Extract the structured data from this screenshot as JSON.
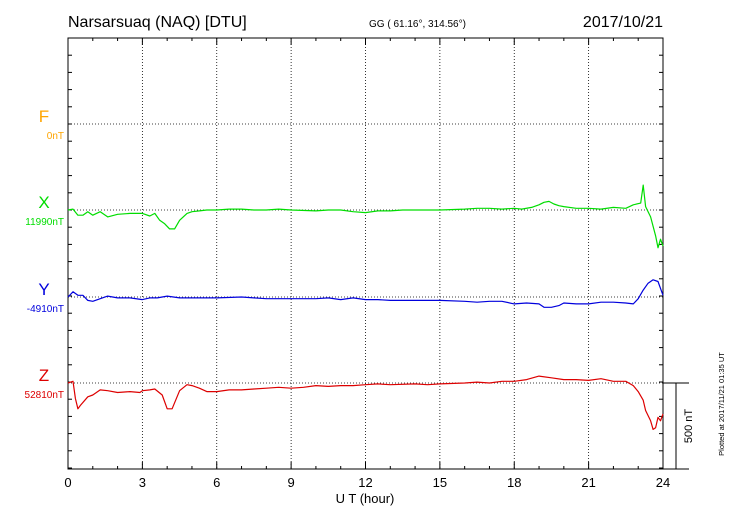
{
  "header": {
    "station": "Narsarsuaq (NAQ)  [DTU]",
    "coords": "GG ( 61.16°, 314.56°)",
    "date": "2017/10/21"
  },
  "scale_bar": {
    "label": "500 nT"
  },
  "plotted_note": "Plotted at 2017/11/21 01:35 UT",
  "chart_data": {
    "type": "line",
    "title": "Narsarsuaq (NAQ)  [DTU]",
    "xlabel": "U T (hour)",
    "xlim": [
      0,
      24
    ],
    "x_ticks": [
      "0",
      "3",
      "6",
      "9",
      "12",
      "15",
      "18",
      "21",
      "24"
    ],
    "grid": true,
    "scale_nT": 500,
    "series": [
      {
        "name": "F",
        "baseline_label": "0nT",
        "baseline_nT": 0,
        "color": "#FFA500",
        "points": []
      },
      {
        "name": "X",
        "baseline_label": "11990nT",
        "baseline_nT": 11990,
        "color": "#00DD00",
        "points": [
          [
            0,
            0
          ],
          [
            0.2,
            5
          ],
          [
            0.4,
            -30
          ],
          [
            0.6,
            -30
          ],
          [
            0.8,
            -10
          ],
          [
            1,
            -30
          ],
          [
            1.3,
            -10
          ],
          [
            1.6,
            -40
          ],
          [
            2,
            -25
          ],
          [
            2.5,
            -20
          ],
          [
            3,
            -20
          ],
          [
            3.3,
            -35
          ],
          [
            3.5,
            -20
          ],
          [
            3.7,
            -60
          ],
          [
            3.9,
            -80
          ],
          [
            4.1,
            -110
          ],
          [
            4.3,
            -110
          ],
          [
            4.5,
            -60
          ],
          [
            4.8,
            -20
          ],
          [
            5,
            -10
          ],
          [
            5.3,
            -5
          ],
          [
            5.6,
            0
          ],
          [
            6,
            0
          ],
          [
            6.5,
            5
          ],
          [
            7,
            5
          ],
          [
            7.5,
            0
          ],
          [
            8,
            0
          ],
          [
            8.5,
            5
          ],
          [
            9,
            0
          ],
          [
            10,
            -5
          ],
          [
            10.5,
            0
          ],
          [
            11,
            0
          ],
          [
            11.5,
            -10
          ],
          [
            12,
            -15
          ],
          [
            12.5,
            -5
          ],
          [
            13,
            -5
          ],
          [
            13.5,
            0
          ],
          [
            14,
            0
          ],
          [
            15,
            0
          ],
          [
            16,
            5
          ],
          [
            16.5,
            10
          ],
          [
            17,
            10
          ],
          [
            17.5,
            5
          ],
          [
            18,
            10
          ],
          [
            18.3,
            5
          ],
          [
            18.7,
            15
          ],
          [
            19,
            30
          ],
          [
            19.2,
            45
          ],
          [
            19.4,
            50
          ],
          [
            19.6,
            35
          ],
          [
            19.8,
            25
          ],
          [
            20,
            20
          ],
          [
            20.5,
            10
          ],
          [
            21,
            10
          ],
          [
            21.5,
            5
          ],
          [
            22,
            15
          ],
          [
            22.5,
            10
          ],
          [
            22.8,
            30
          ],
          [
            23.1,
            40
          ],
          [
            23.2,
            145
          ],
          [
            23.3,
            20
          ],
          [
            23.5,
            -40
          ],
          [
            23.7,
            -150
          ],
          [
            23.8,
            -220
          ],
          [
            23.9,
            -170
          ],
          [
            24,
            -210
          ]
        ]
      },
      {
        "name": "Y",
        "baseline_label": "-4910nT",
        "baseline_nT": -4910,
        "color": "#0000DD",
        "points": [
          [
            0,
            0
          ],
          [
            0.2,
            30
          ],
          [
            0.4,
            10
          ],
          [
            0.6,
            10
          ],
          [
            0.8,
            -20
          ],
          [
            1,
            -25
          ],
          [
            1.3,
            -10
          ],
          [
            1.6,
            5
          ],
          [
            2,
            -5
          ],
          [
            2.5,
            -5
          ],
          [
            3,
            -15
          ],
          [
            3.3,
            -5
          ],
          [
            3.6,
            -5
          ],
          [
            4,
            5
          ],
          [
            4.5,
            -5
          ],
          [
            5,
            -5
          ],
          [
            5.5,
            -5
          ],
          [
            6,
            -5
          ],
          [
            7,
            0
          ],
          [
            7.5,
            -5
          ],
          [
            8,
            -10
          ],
          [
            8.5,
            -10
          ],
          [
            9,
            -10
          ],
          [
            10,
            -10
          ],
          [
            10.5,
            -5
          ],
          [
            11,
            -15
          ],
          [
            11.5,
            -5
          ],
          [
            12,
            -15
          ],
          [
            12.5,
            -15
          ],
          [
            13,
            -20
          ],
          [
            14,
            -20
          ],
          [
            15,
            -20
          ],
          [
            16,
            -25
          ],
          [
            16.5,
            -30
          ],
          [
            17,
            -25
          ],
          [
            17.5,
            -25
          ],
          [
            18,
            -40
          ],
          [
            18.5,
            -35
          ],
          [
            19,
            -40
          ],
          [
            19.2,
            -60
          ],
          [
            19.5,
            -60
          ],
          [
            19.8,
            -50
          ],
          [
            20,
            -35
          ],
          [
            20.5,
            -40
          ],
          [
            21,
            -40
          ],
          [
            21.5,
            -30
          ],
          [
            22,
            -30
          ],
          [
            22.5,
            -35
          ],
          [
            22.8,
            -40
          ],
          [
            23,
            -10
          ],
          [
            23.2,
            40
          ],
          [
            23.4,
            80
          ],
          [
            23.6,
            100
          ],
          [
            23.8,
            90
          ],
          [
            24,
            10
          ]
        ]
      },
      {
        "name": "Z",
        "baseline_label": "52810nT",
        "baseline_nT": 52810,
        "color": "#DD0000",
        "points": [
          [
            0,
            0
          ],
          [
            0.2,
            10
          ],
          [
            0.3,
            -90
          ],
          [
            0.4,
            -150
          ],
          [
            0.5,
            -130
          ],
          [
            0.8,
            -80
          ],
          [
            1,
            -70
          ],
          [
            1.3,
            -40
          ],
          [
            1.6,
            -45
          ],
          [
            2,
            -55
          ],
          [
            2.5,
            -50
          ],
          [
            2.9,
            -55
          ],
          [
            3,
            -45
          ],
          [
            3.3,
            -40
          ],
          [
            3.5,
            -35
          ],
          [
            3.8,
            -70
          ],
          [
            4,
            -150
          ],
          [
            4.2,
            -150
          ],
          [
            4.5,
            -45
          ],
          [
            4.8,
            -10
          ],
          [
            5,
            -15
          ],
          [
            5.3,
            -30
          ],
          [
            5.6,
            -50
          ],
          [
            6,
            -50
          ],
          [
            6.5,
            -40
          ],
          [
            7,
            -40
          ],
          [
            7.5,
            -35
          ],
          [
            8,
            -30
          ],
          [
            8.5,
            -25
          ],
          [
            9,
            -30
          ],
          [
            9.5,
            -25
          ],
          [
            10,
            -15
          ],
          [
            10.5,
            -20
          ],
          [
            11,
            -15
          ],
          [
            11.5,
            -15
          ],
          [
            12,
            -10
          ],
          [
            12.5,
            -5
          ],
          [
            13,
            -10
          ],
          [
            14,
            -5
          ],
          [
            14.5,
            -10
          ],
          [
            15,
            -5
          ],
          [
            16,
            0
          ],
          [
            16.5,
            5
          ],
          [
            17,
            0
          ],
          [
            17.5,
            10
          ],
          [
            18,
            10
          ],
          [
            18.5,
            20
          ],
          [
            19,
            40
          ],
          [
            19.5,
            30
          ],
          [
            20,
            20
          ],
          [
            20.5,
            20
          ],
          [
            21,
            15
          ],
          [
            21.5,
            25
          ],
          [
            22,
            10
          ],
          [
            22.5,
            10
          ],
          [
            22.8,
            -15
          ],
          [
            23,
            -50
          ],
          [
            23.2,
            -100
          ],
          [
            23.3,
            -160
          ],
          [
            23.5,
            -220
          ],
          [
            23.6,
            -270
          ],
          [
            23.7,
            -260
          ],
          [
            23.8,
            -200
          ],
          [
            23.9,
            -220
          ],
          [
            24,
            -180
          ]
        ]
      }
    ]
  }
}
